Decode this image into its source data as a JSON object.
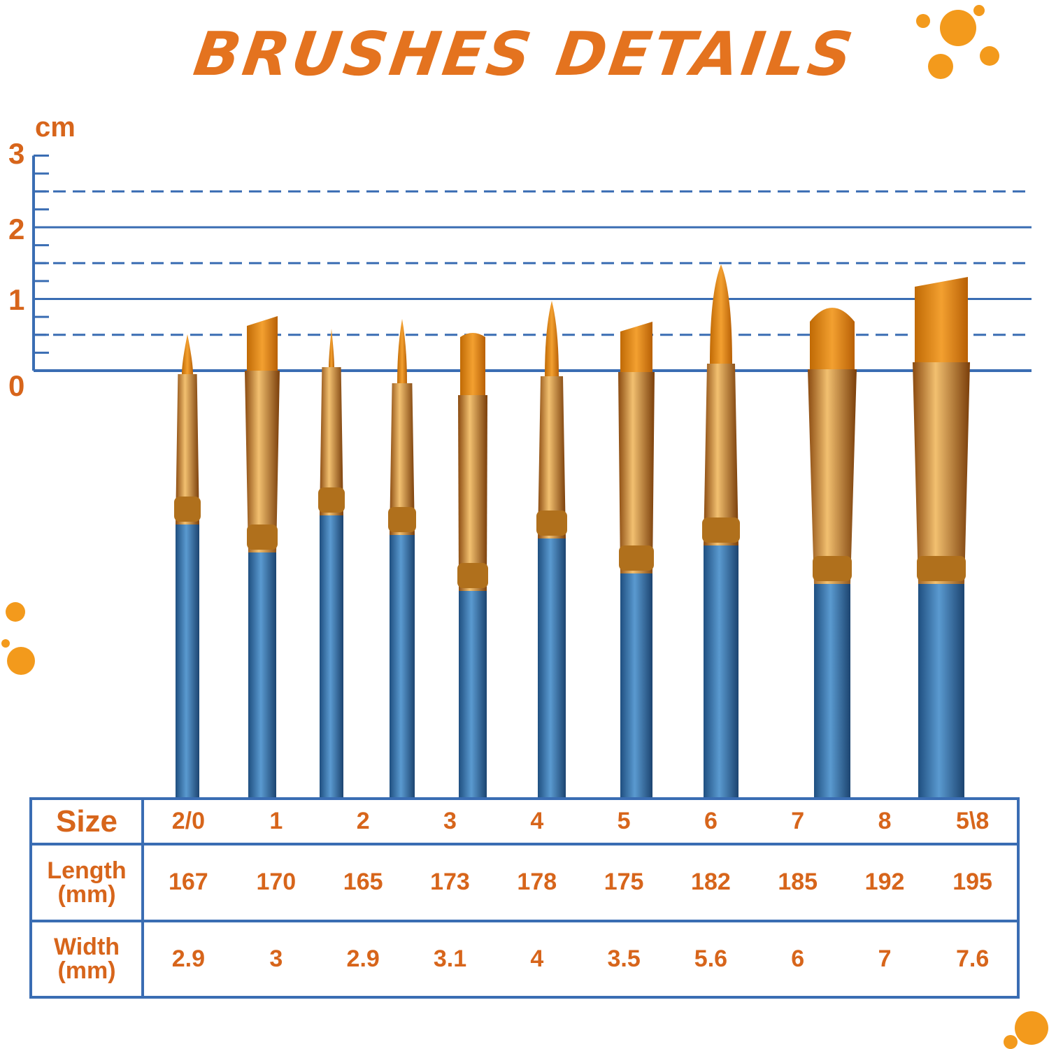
{
  "title": "BRUSHES DETAILS",
  "ruler": {
    "unit": "cm",
    "labels": [
      "3",
      "2",
      "1",
      "0"
    ],
    "line_color": "#3a6db3"
  },
  "table": {
    "headers": {
      "size": "Size",
      "length": "Length (mm)",
      "width": "Width (mm)"
    },
    "sizes": [
      "2/0",
      "1",
      "2",
      "3",
      "4",
      "5",
      "6",
      "7",
      "8",
      "5\\8"
    ],
    "lengths": [
      "167",
      "170",
      "165",
      "173",
      "178",
      "175",
      "182",
      "185",
      "192",
      "195"
    ],
    "widths": [
      "2.9",
      "3",
      "2.9",
      "3.1",
      "4",
      "3.5",
      "5.6",
      "6",
      "7",
      "7.6"
    ]
  },
  "colors": {
    "accent": "#d7651b",
    "handle": "#3f7fb5",
    "ferrule": "#c98a2e",
    "bristle": "#e08a10"
  }
}
